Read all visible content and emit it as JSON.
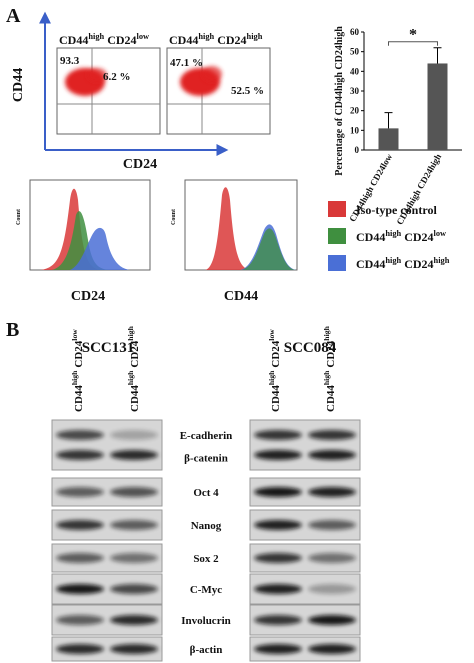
{
  "panel_a": {
    "label": "A",
    "flow": {
      "y_axis": "CD44",
      "x_axis": "CD24",
      "plots": [
        {
          "title": [
            "CD44",
            "high",
            "CD24",
            "low"
          ],
          "left": "93.3",
          "right": "6.2 %"
        },
        {
          "title": [
            "CD44",
            "high",
            "CD24",
            "high"
          ],
          "left": "47.1 %",
          "right": "52.5 %"
        }
      ]
    },
    "histograms": {
      "axis_labels": [
        "CD24",
        "CD44"
      ]
    },
    "legend": [
      [
        "Iso-type control"
      ],
      [
        "CD44",
        "high",
        "CD24",
        "low"
      ],
      [
        "CD44",
        "high",
        "CD24",
        "high"
      ]
    ]
  },
  "chart_data": {
    "type": "bar",
    "ylabel": "Percentage of CD44high CD24high",
    "categories": [
      "CD44high CD24low",
      "CD44high CD24high"
    ],
    "values": [
      11,
      44
    ],
    "errors": [
      8,
      8
    ],
    "color": "#555555",
    "ylim": [
      0,
      60
    ],
    "yticks": [
      0,
      10,
      20,
      30,
      40,
      50,
      60
    ],
    "annotation": "*"
  },
  "panel_b": {
    "label": "B",
    "cell_lines": [
      "SCC131",
      "SCC084"
    ],
    "lanes": [
      [
        "CD44",
        "high",
        "CD24",
        "low"
      ],
      [
        "CD44",
        "high",
        "CD24",
        "high"
      ]
    ],
    "proteins": [
      "E-cadherin",
      "β-catenin",
      "Oct 4",
      "Nanog",
      "Sox 2",
      "C-Myc",
      "Involucrin",
      "β-actin"
    ]
  }
}
